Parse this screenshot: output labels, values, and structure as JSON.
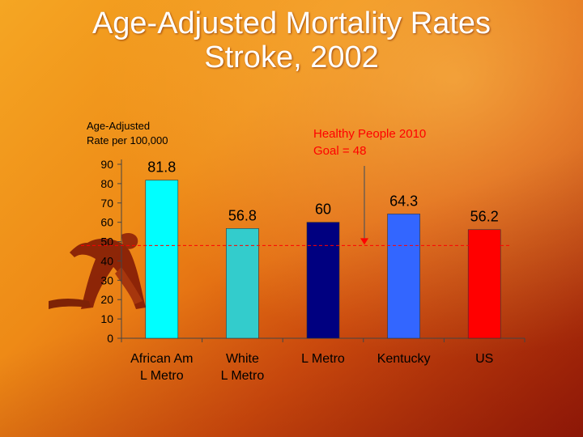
{
  "slide": {
    "title_line1": "Age-Adjusted Mortality Rates",
    "title_line2": "Stroke, 2002"
  },
  "chart_data": {
    "type": "bar",
    "ylabel_line1": "Age-Adjusted",
    "ylabel_line2": "Rate per 100,000",
    "ylim": [
      0,
      90
    ],
    "yticks": [
      0,
      10,
      20,
      30,
      40,
      50,
      60,
      70,
      80,
      90
    ],
    "categories": [
      [
        "African Am",
        "L Metro"
      ],
      [
        "White",
        "L Metro"
      ],
      [
        "L Metro"
      ],
      [
        "Kentucky"
      ],
      [
        "US"
      ]
    ],
    "values": [
      81.8,
      56.8,
      60,
      64.3,
      56.2
    ],
    "value_labels": [
      "81.8",
      "56.8",
      "60",
      "64.3",
      "56.2"
    ],
    "bar_colors": [
      "#00ffff",
      "#33cccc",
      "#000080",
      "#3366ff",
      "#ff0000"
    ],
    "reference_line": {
      "value": 48,
      "label_line1": "Healthy People 2010",
      "label_line2": "Goal = 48",
      "color": "#ff0000"
    },
    "grid": false
  }
}
